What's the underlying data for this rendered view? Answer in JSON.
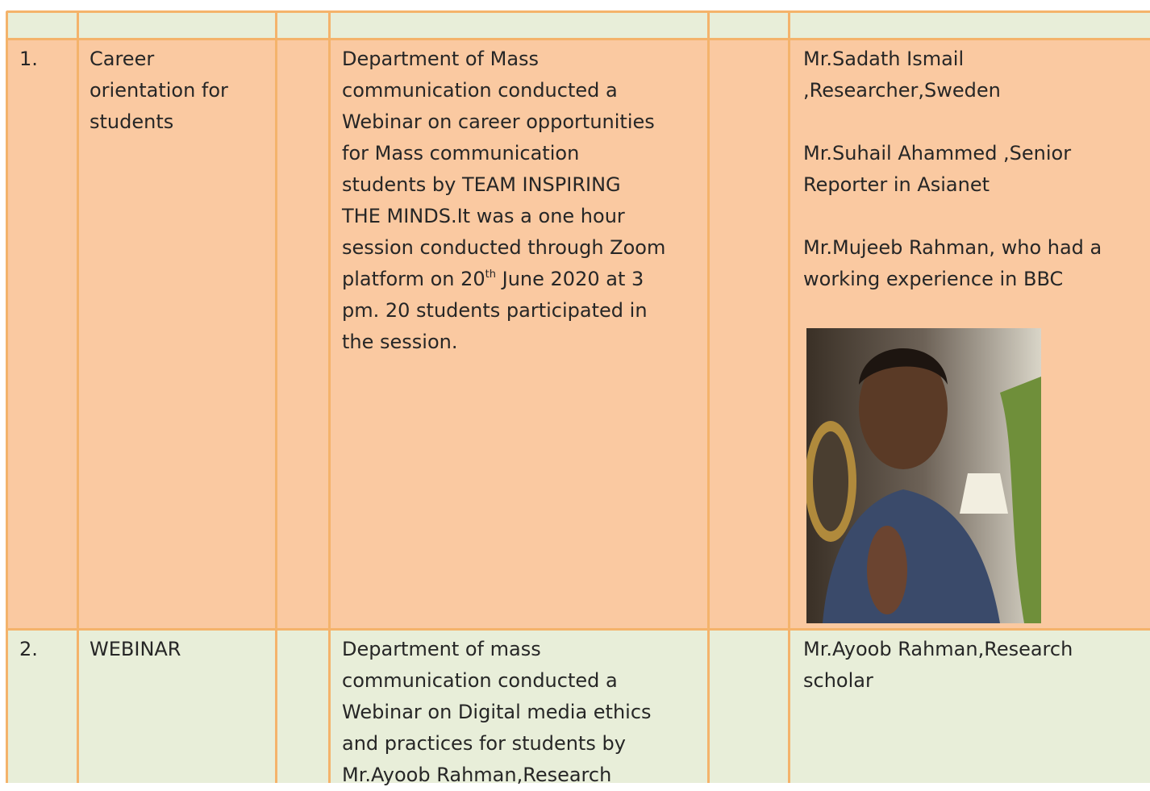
{
  "table": {
    "rows": [
      {
        "number": "1.",
        "title": [
          "Career",
          "orientation for",
          "students"
        ],
        "description": [
          "Department of Mass",
          "communication conducted a",
          "Webinar on career opportunities",
          "for Mass communication",
          "students  by  TEAM INSPIRING",
          "THE MINDS.It was a one hour",
          "session conducted through Zoom",
          {
            "text": "platform on 20",
            "sup": "th",
            "rest": " June 2020 at 3"
          },
          "pm. 20 students participated in",
          "the session."
        ],
        "resource_persons": [
          [
            "Mr.Sadath Ismail",
            ",Researcher,Sweden"
          ],
          [
            "Mr.Suhail Ahammed ,Senior",
            "Reporter in Asianet"
          ],
          [
            "Mr.Mujeeb Rahman, who had a",
            "working experience in BBC"
          ]
        ]
      },
      {
        "number": "2.",
        "title": [
          "WEBINAR"
        ],
        "description": [
          "Department of mass",
          "communication conducted a",
          "Webinar on Digital media ethics",
          "and practices for students  by",
          "Mr.Ayoob Rahman,Research"
        ],
        "resource_persons": [
          [
            "Mr.Ayoob Rahman,Research",
            "scholar"
          ]
        ]
      }
    ]
  }
}
